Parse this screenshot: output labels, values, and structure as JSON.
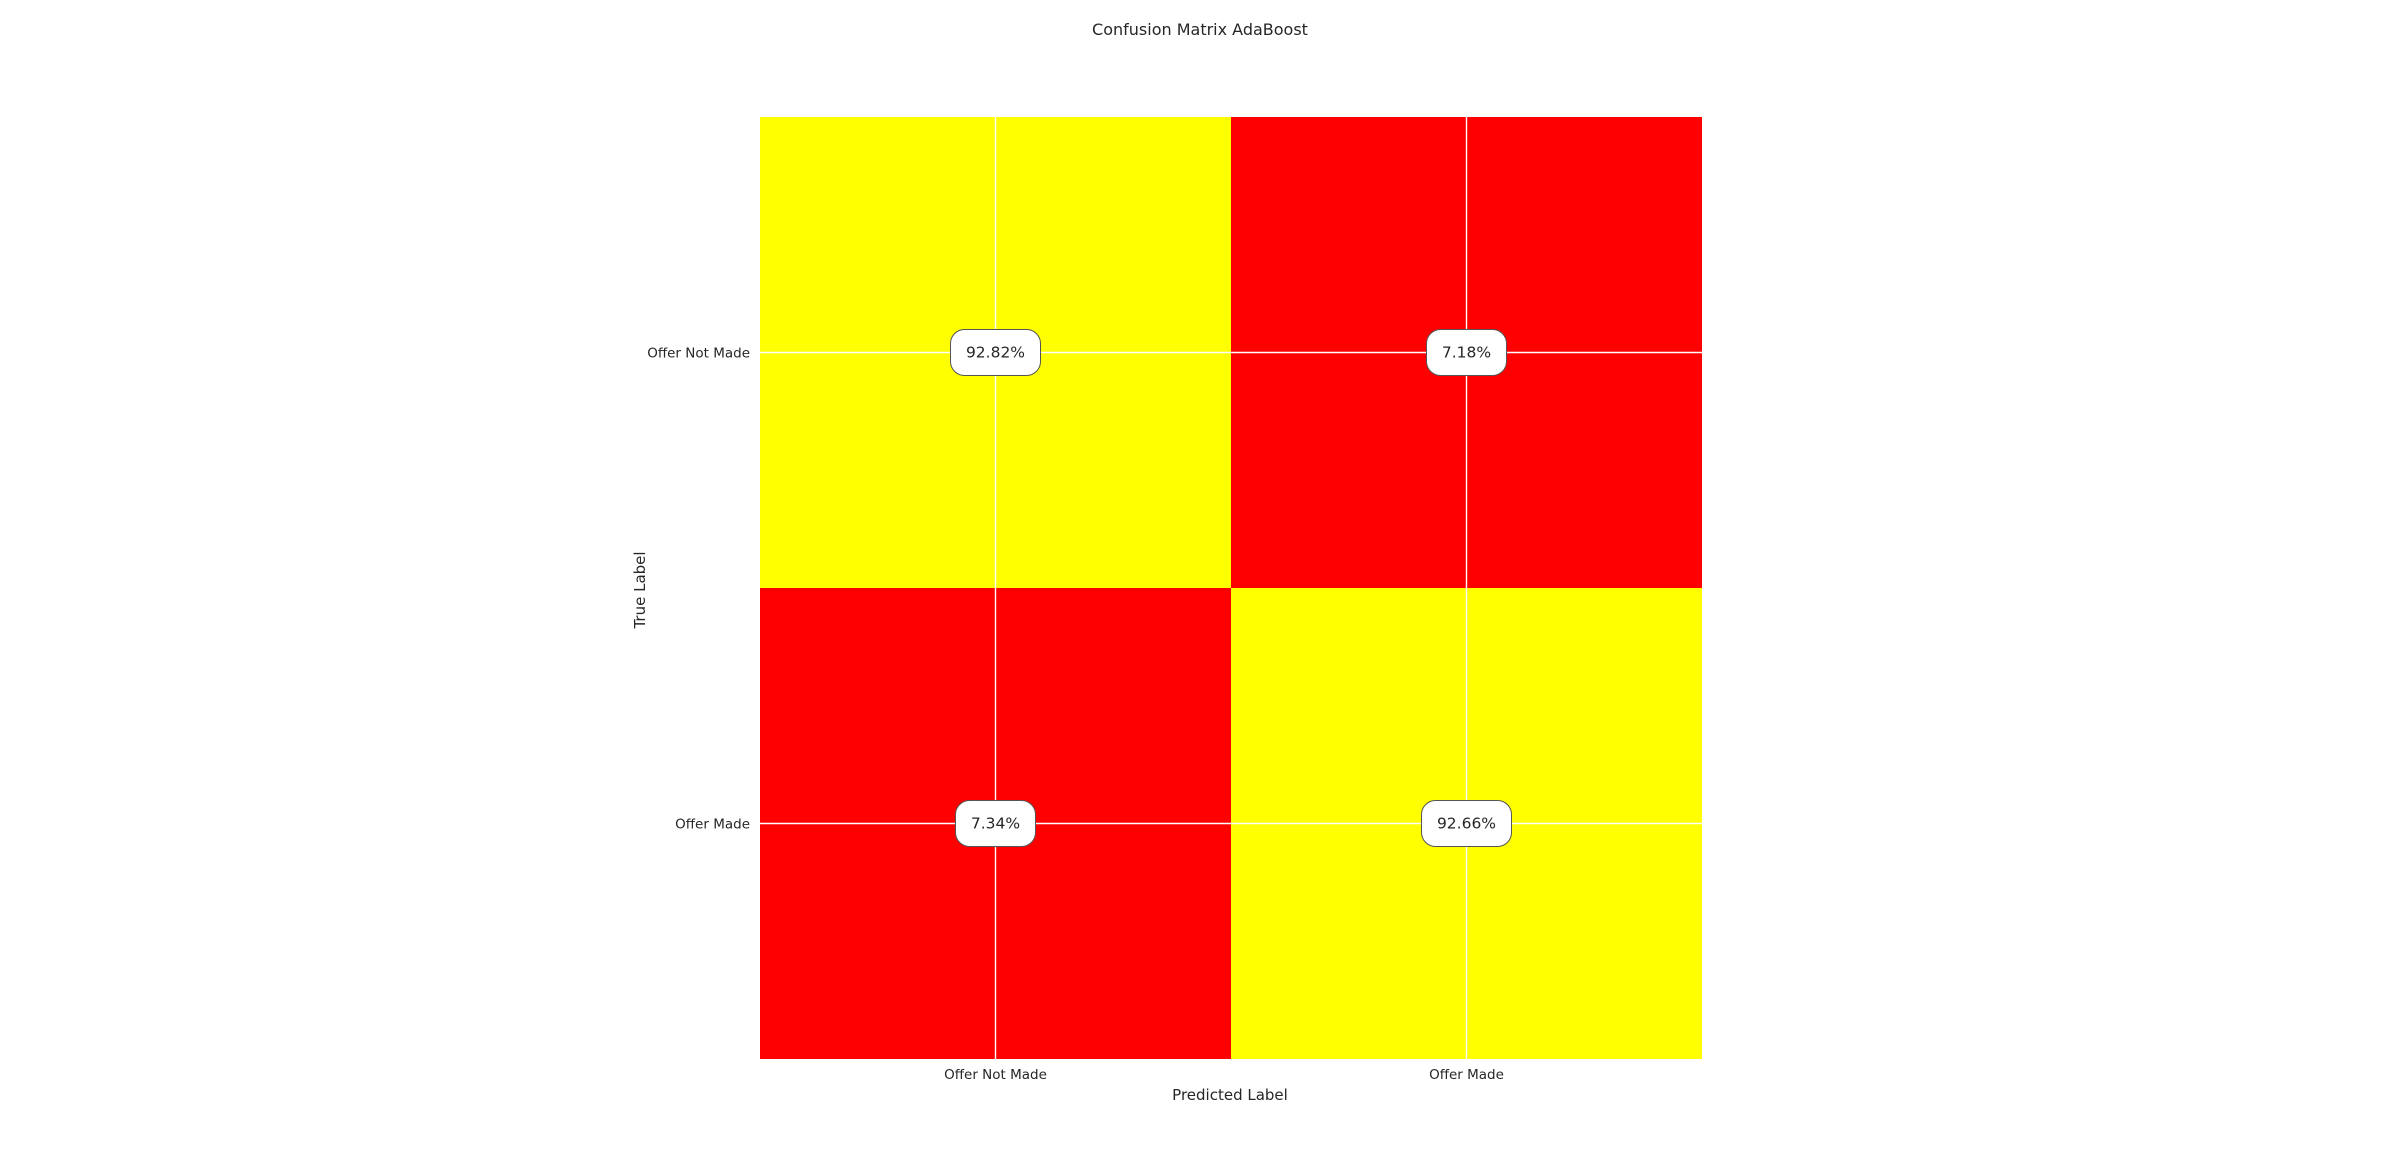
{
  "chart_data": {
    "type": "heatmap",
    "title": "Confusion Matrix AdaBoost",
    "xlabel": "Predicted Label",
    "ylabel": "True Label",
    "x_categories": [
      "Offer Not Made",
      "Offer Made"
    ],
    "y_categories": [
      "Offer Not Made",
      "Offer Made"
    ],
    "values": [
      [
        92.82,
        7.18
      ],
      [
        7.34,
        92.66
      ]
    ],
    "cell_labels": [
      [
        "92.82%",
        "7.18%"
      ],
      [
        "7.34%",
        "92.66%"
      ]
    ],
    "value_unit": "%",
    "colors": {
      "high": "#ffff00",
      "low": "#ff0000",
      "grid": "#ffffff",
      "label_box_fill": "#ffffff",
      "label_box_stroke": "#555555"
    },
    "grid": true,
    "legend": "none"
  }
}
